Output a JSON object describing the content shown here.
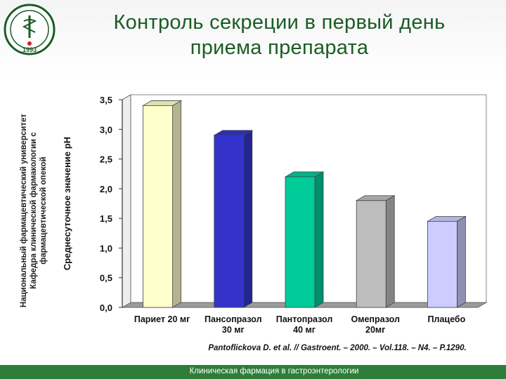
{
  "slide": {
    "title_line1": "Контроль секреции в первый день",
    "title_line2": "приема препарата",
    "side_text_line1": "Национальный фармацевтический университет",
    "side_text_line2": "Кафедра клинической фармакологии с",
    "side_text_line3": "фармацевтической опекой",
    "logo_year": "1993",
    "citation": "Pantoflickova D. et al. // Gastroent. – 2000. – Vol.118. – N4. – P.1290.",
    "footer": "Клиническая фармация в гастроэнтерологии"
  },
  "colors": {
    "title": "#1a5c24",
    "footer_bg": "#2e7d3a",
    "bar_pariet": "#ffffcc",
    "bar_pansoprazol": "#3333cc",
    "bar_pantoprazol": "#00cc99",
    "bar_omeprazol": "#bdbdbd",
    "bar_placebo": "#ccccff"
  },
  "chart_data": {
    "type": "bar",
    "categories": [
      [
        "Париет 20 мг"
      ],
      [
        "Пансопразол",
        "30 мг"
      ],
      [
        "Пантопразол",
        "40 мг"
      ],
      [
        "Омепразол",
        "20мг"
      ],
      [
        "Плацебо"
      ]
    ],
    "values": [
      3.4,
      2.9,
      2.2,
      1.8,
      1.45
    ],
    "colors": [
      "#ffffcc",
      "#3333cc",
      "#00cc99",
      "#bdbdbd",
      "#ccccff"
    ],
    "ylabel": "Среднесуточное значение рН",
    "ylim": [
      0,
      3.5
    ],
    "yticks": [
      "0,0",
      "0,5",
      "1,0",
      "1,5",
      "2,0",
      "2,5",
      "3,0",
      "3,5"
    ],
    "grid": true,
    "style": "3d"
  }
}
